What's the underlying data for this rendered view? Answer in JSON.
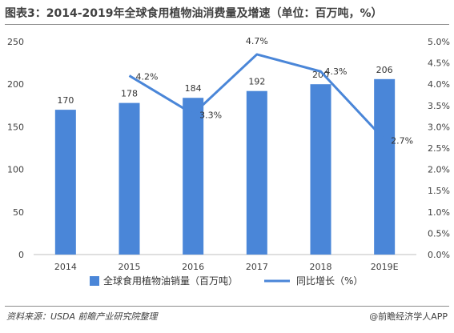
{
  "header": {
    "title": "图表3：2014-2019年全球食用植物油消费量及增速（单位：百万吨，%）"
  },
  "footer": {
    "source": "资料来源：USDA  前瞻产业研究院整理",
    "brand": "@前瞻经济学人APP"
  },
  "chart_data": {
    "type": "bar",
    "categories": [
      "2014",
      "2015",
      "2016",
      "2017",
      "2018",
      "2019E"
    ],
    "series": [
      {
        "name": "全球食用植物油销量（百万吨）",
        "kind": "bar",
        "axis": "left",
        "color": "#4a86d8",
        "values": [
          170,
          178,
          184,
          192,
          200,
          206
        ],
        "labels": [
          "170",
          "178",
          "184",
          "192",
          "200",
          "206"
        ]
      },
      {
        "name": "同比增长（%）",
        "kind": "line",
        "axis": "right",
        "color": "#4a86d8",
        "values": [
          null,
          4.2,
          3.3,
          4.7,
          4.3,
          2.7
        ],
        "labels": [
          null,
          "4.2%",
          "3.3%",
          "4.7%",
          "4.3%",
          "2.7%"
        ]
      }
    ],
    "y_left": {
      "ylim": [
        0,
        250
      ],
      "ticks": [
        "0",
        "50",
        "100",
        "150",
        "200",
        "250"
      ]
    },
    "y_right": {
      "ylim": [
        0,
        5
      ],
      "ticks": [
        "0.0%",
        "0.5%",
        "1.0%",
        "1.5%",
        "2.0%",
        "2.5%",
        "3.0%",
        "3.5%",
        "4.0%",
        "4.5%",
        "5.0%"
      ]
    },
    "grid": false,
    "legend": "bottom"
  }
}
